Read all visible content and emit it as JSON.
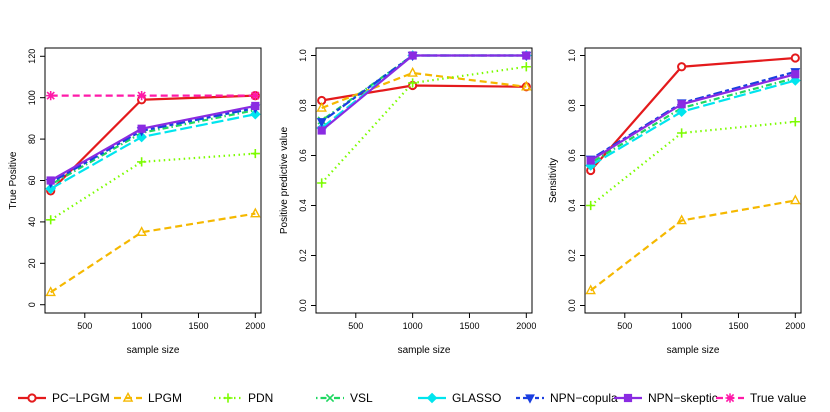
{
  "chart_data": [
    {
      "type": "line",
      "xlabel": "sample size",
      "ylabel": "True Positive",
      "x": [
        200,
        1000,
        2000
      ],
      "xticks": [
        500,
        1000,
        1500,
        2000
      ],
      "xlim": [
        150,
        2050
      ],
      "ylim": [
        -4,
        124
      ],
      "yticks": [
        0,
        20,
        40,
        60,
        80,
        100,
        120
      ],
      "series": [
        {
          "name": "PC-LPGM",
          "values": [
            55,
            99,
            101
          ]
        },
        {
          "name": "LPGM",
          "values": [
            6,
            35,
            44
          ]
        },
        {
          "name": "PDN",
          "values": [
            41,
            69,
            73
          ]
        },
        {
          "name": "VSL",
          "values": [
            58,
            83,
            94
          ]
        },
        {
          "name": "GLASSO",
          "values": [
            56,
            81,
            92
          ]
        },
        {
          "name": "NPN-copula",
          "values": [
            59,
            84,
            95
          ]
        },
        {
          "name": "NPN-skeptic",
          "values": [
            60,
            85,
            96
          ]
        },
        {
          "name": "True value",
          "values": [
            101,
            101,
            101
          ]
        }
      ]
    },
    {
      "type": "line",
      "xlabel": "sample size",
      "ylabel": "Positive predictive value",
      "x": [
        200,
        1000,
        2000
      ],
      "xticks": [
        500,
        1000,
        1500,
        2000
      ],
      "xlim": [
        150,
        2050
      ],
      "ylim": [
        -0.03,
        1.03
      ],
      "yticks": [
        "0.0",
        "0.2",
        "0.4",
        "0.6",
        "0.8",
        "1.0"
      ],
      "series": [
        {
          "name": "PC-LPGM",
          "values": [
            0.82,
            0.88,
            0.875
          ]
        },
        {
          "name": "LPGM",
          "values": [
            0.79,
            0.93,
            0.875
          ]
        },
        {
          "name": "PDN",
          "values": [
            0.49,
            0.89,
            0.955
          ]
        },
        {
          "name": "VSL",
          "values": [
            0.74,
            1.0,
            1.0
          ]
        },
        {
          "name": "GLASSO",
          "values": [
            0.71,
            1.0,
            1.0
          ]
        },
        {
          "name": "NPN-copula",
          "values": [
            0.735,
            1.0,
            1.0
          ]
        },
        {
          "name": "NPN-skeptic",
          "values": [
            0.7,
            1.0,
            1.0
          ]
        }
      ]
    },
    {
      "type": "line",
      "xlabel": "sample size",
      "ylabel": "Sensitivity",
      "x": [
        200,
        1000,
        2000
      ],
      "xticks": [
        500,
        1000,
        1500,
        2000
      ],
      "xlim": [
        150,
        2050
      ],
      "ylim": [
        -0.03,
        1.03
      ],
      "yticks": [
        "0.0",
        "0.2",
        "0.4",
        "0.6",
        "0.8",
        "1.0"
      ],
      "series": [
        {
          "name": "PC-LPGM",
          "values": [
            0.54,
            0.955,
            0.99
          ]
        },
        {
          "name": "LPGM",
          "values": [
            0.06,
            0.34,
            0.42
          ]
        },
        {
          "name": "PDN",
          "values": [
            0.4,
            0.69,
            0.735
          ]
        },
        {
          "name": "VSL",
          "values": [
            0.57,
            0.79,
            0.91
          ]
        },
        {
          "name": "GLASSO",
          "values": [
            0.56,
            0.775,
            0.9
          ]
        },
        {
          "name": "NPN-copula",
          "values": [
            0.585,
            0.81,
            0.935
          ]
        },
        {
          "name": "NPN-skeptic",
          "values": [
            0.58,
            0.805,
            0.925
          ]
        }
      ]
    }
  ],
  "legend": {
    "position": "bottom",
    "items": [
      {
        "label": "PC−LPGM",
        "color": "#e41a1c",
        "marker": "circle",
        "dash": "solid"
      },
      {
        "label": "LPGM",
        "color": "#f5b800",
        "marker": "triangle",
        "dash": "dashed"
      },
      {
        "label": "PDN",
        "color": "#7cfc00",
        "marker": "plus",
        "dash": "dotted"
      },
      {
        "label": "VSL",
        "color": "#1ed760",
        "marker": "cross",
        "dash": "dotdash"
      },
      {
        "label": "GLASSO",
        "color": "#00e5ee",
        "marker": "diamond",
        "dash": "longdash"
      },
      {
        "label": "NPN−copula",
        "color": "#1a3fe0",
        "marker": "triangle-down",
        "dash": "twodash"
      },
      {
        "label": "NPN−skeptic",
        "color": "#8a2be2",
        "marker": "square",
        "dash": "solid"
      },
      {
        "label": "True value",
        "color": "#ff1aa8",
        "marker": "asterisk",
        "dash": "dashed"
      }
    ]
  }
}
